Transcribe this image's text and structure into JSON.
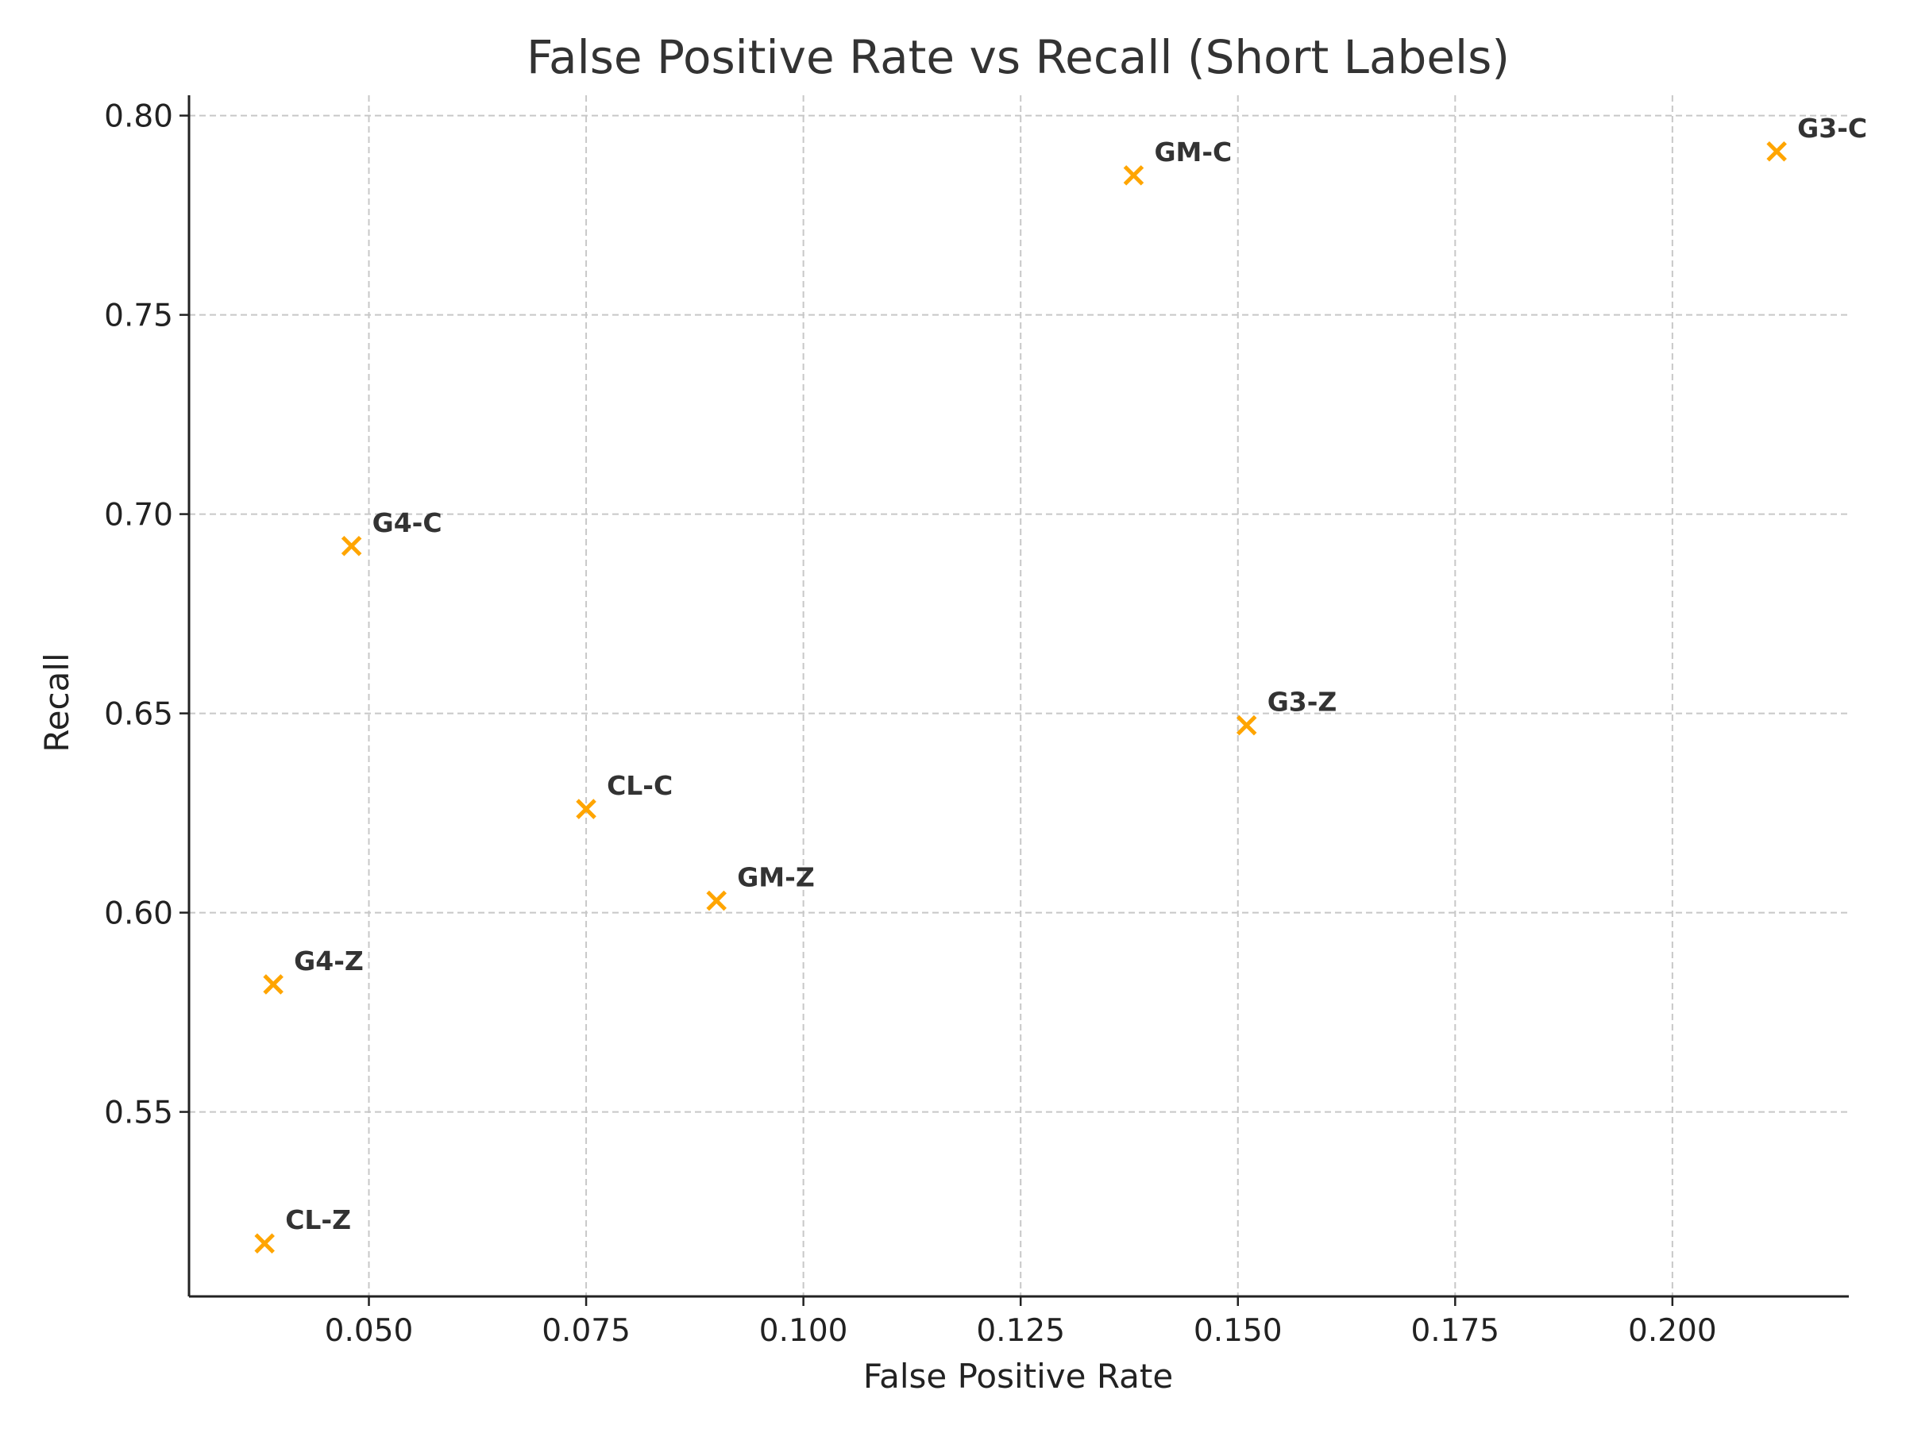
{
  "chart_data": {
    "type": "scatter",
    "title": "False Positive Rate vs Recall (Short Labels)",
    "xlabel": "False Positive Rate",
    "ylabel": "Recall",
    "xlim": [
      0.0293,
      0.2203
    ],
    "ylim": [
      0.5037,
      0.8051
    ],
    "xticks": [
      0.05,
      0.075,
      0.1,
      0.125,
      0.15,
      0.175,
      0.2
    ],
    "xtick_labels": [
      "0.050",
      "0.075",
      "0.100",
      "0.125",
      "0.150",
      "0.175",
      "0.200"
    ],
    "yticks": [
      0.55,
      0.6,
      0.65,
      0.7,
      0.75,
      0.8
    ],
    "ytick_labels": [
      "0.55",
      "0.60",
      "0.65",
      "0.70",
      "0.75",
      "0.80"
    ],
    "grid": true,
    "marker": "x",
    "marker_color": "#FFA500",
    "points": [
      {
        "label": "GM-C",
        "x": 0.138,
        "y": 0.785
      },
      {
        "label": "G3-C",
        "x": 0.212,
        "y": 0.791
      },
      {
        "label": "G4-C",
        "x": 0.048,
        "y": 0.692
      },
      {
        "label": "G3-Z",
        "x": 0.151,
        "y": 0.647
      },
      {
        "label": "CL-C",
        "x": 0.075,
        "y": 0.626
      },
      {
        "label": "GM-Z",
        "x": 0.09,
        "y": 0.603
      },
      {
        "label": "G4-Z",
        "x": 0.039,
        "y": 0.582
      },
      {
        "label": "CL-Z",
        "x": 0.038,
        "y": 0.517
      }
    ]
  }
}
